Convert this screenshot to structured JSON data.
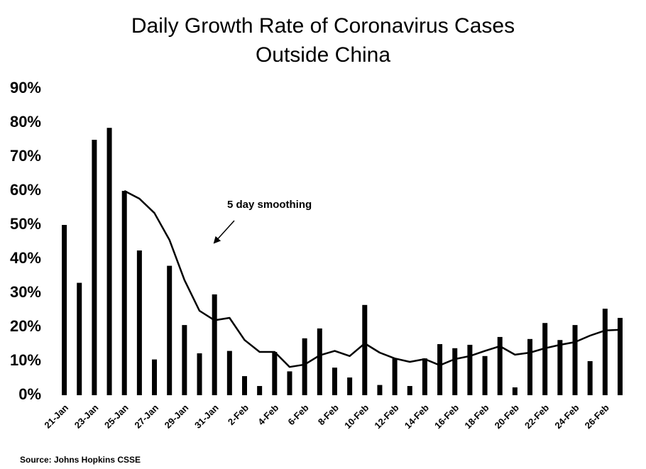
{
  "chart_data": {
    "type": "bar",
    "title": [
      "Daily Growth Rate of Coronavirus Cases",
      "Outside China"
    ],
    "categories": [
      "21-Jan",
      null,
      "23-Jan",
      null,
      "25-Jan",
      null,
      "27-Jan",
      null,
      "29-Jan",
      null,
      "31-Jan",
      null,
      "2-Feb",
      null,
      "4-Feb",
      null,
      "6-Feb",
      null,
      "8-Feb",
      null,
      "10-Feb",
      null,
      "12-Feb",
      null,
      "14-Feb",
      null,
      "16-Feb",
      null,
      "18-Feb",
      null,
      "20-Feb",
      null,
      "22-Feb",
      null,
      "24-Feb",
      null,
      "26-Feb",
      null
    ],
    "series": [
      {
        "type": "bar",
        "color": "#000000",
        "values": [
          50,
          33,
          75,
          78.5,
          60,
          42.5,
          10.5,
          38,
          20.6,
          12.3,
          29.6,
          13,
          5.6,
          2.7,
          12.7,
          7,
          16.7,
          19.6,
          8.1,
          5.2,
          26.5,
          3,
          10.8,
          2.7,
          10.8,
          15,
          13.8,
          14.8,
          11.5,
          17.1,
          2.3,
          16.5,
          21.2,
          16.2,
          20.6,
          10,
          25.4,
          22.7
        ]
      },
      {
        "type": "line",
        "color": "#000000",
        "values": [
          null,
          null,
          null,
          null,
          60,
          57.7,
          53.5,
          45.6,
          33.8,
          24.8,
          22,
          22.7,
          16.2,
          12.7,
          12.7,
          8.3,
          9,
          11.7,
          13,
          11.5,
          15.2,
          12.5,
          10.8,
          9.8,
          10.6,
          8.8,
          10.6,
          11.5,
          13,
          14.4,
          11.9,
          12.5,
          13.8,
          14.8,
          15.6,
          17.5,
          19,
          19.2
        ]
      }
    ],
    "ylim": [
      0,
      90
    ],
    "yticks": [
      {
        "value": 0,
        "label": "0%"
      },
      {
        "value": 10,
        "label": "10%"
      },
      {
        "value": 20,
        "label": "20%"
      },
      {
        "value": 30,
        "label": "30%"
      },
      {
        "value": 40,
        "label": "40%"
      },
      {
        "value": 50,
        "label": "50%"
      },
      {
        "value": 60,
        "label": "60%"
      },
      {
        "value": 70,
        "label": "70%"
      },
      {
        "value": 80,
        "label": "80%"
      },
      {
        "value": 90,
        "label": "90%"
      }
    ],
    "grid": false,
    "annotation": "5 day smoothing",
    "source": "Source: Johns Hopkins CSSE"
  }
}
